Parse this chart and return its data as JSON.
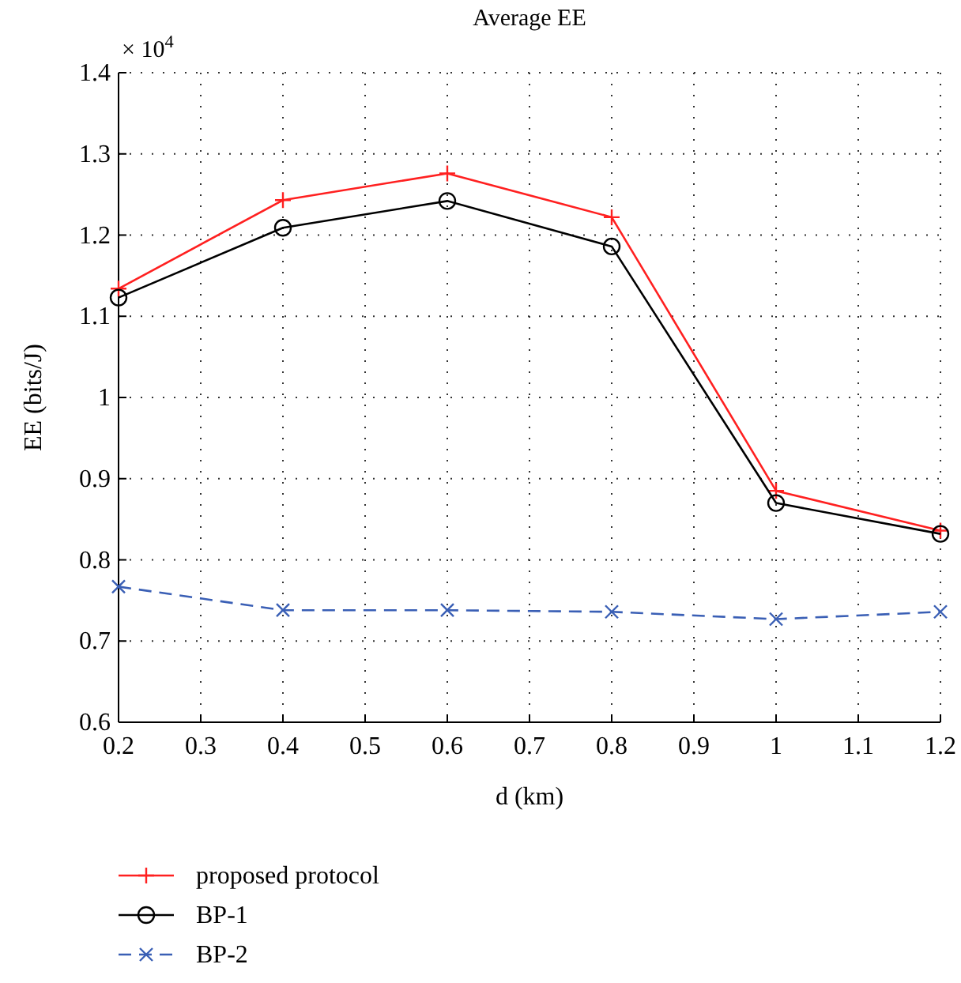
{
  "chart_data": {
    "type": "line",
    "title": "Average EE",
    "xlabel": "d (km)",
    "ylabel": "EE (bits/J)",
    "annotations": [
      "× 10$^{4}$"
    ],
    "x": [
      0.2,
      0.4,
      0.6,
      0.8,
      1,
      1.2
    ],
    "series": [
      {
        "name": "proposed protocol",
        "color": "#ff2020",
        "marker": "plus",
        "line_style": "solid",
        "values": [
          1.134,
          1.243,
          1.276,
          1.222,
          0.885,
          0.836
        ]
      },
      {
        "name": "BP-1",
        "color": "#000000",
        "marker": "circle",
        "line_style": "solid",
        "values": [
          1.123,
          1.209,
          1.242,
          1.186,
          0.87,
          0.832
        ]
      },
      {
        "name": "BP-2",
        "color": "#3a5fb5",
        "marker": "cross",
        "line_style": "dashed",
        "values": [
          0.767,
          0.738,
          0.738,
          0.736,
          0.727,
          0.736
        ]
      }
    ],
    "xlim": [
      0.2,
      1.2
    ],
    "xticks": [
      0.2,
      0.3,
      0.4,
      0.5,
      0.6,
      0.7,
      0.8,
      0.9,
      1,
      1.1,
      1.2
    ],
    "ylim": [
      0.6,
      1.4
    ],
    "yticks": [
      0.6,
      0.7,
      0.8,
      0.9,
      1,
      1.1,
      1.2,
      1.3,
      1.4
    ],
    "grid": true,
    "legend": "bottom"
  }
}
